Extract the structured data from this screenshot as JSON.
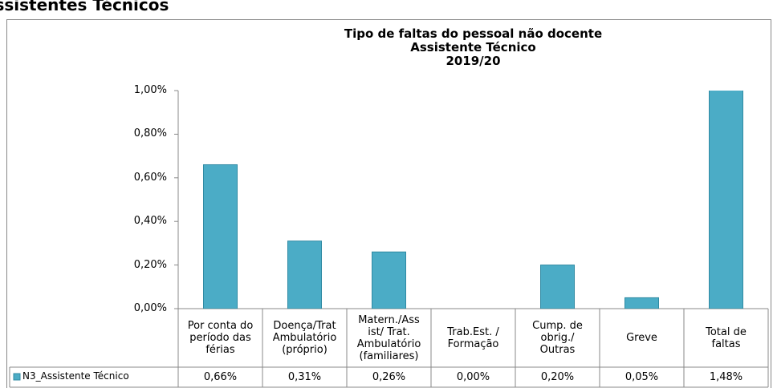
{
  "heading": "Assistentes Técnicos",
  "chart_data": {
    "type": "bar",
    "title": "Tipo de faltas do pessoal não docente\nAssistente Técnico\n2019/20",
    "categories": [
      "Por conta do\nperíodo das\nférias",
      "Doença/Trat\nAmbulatório\n(próprio)",
      "Matern./Ass\nist/ Trat.\nAmbulatório\n(familiares)",
      "Trab.Est. /\nFormação",
      "Cump. de\nobrig./\nOutras",
      "Greve",
      "Total de\nfaltas"
    ],
    "series": [
      {
        "name": "N3_Assistente Técnico",
        "color": "#4bacc6",
        "values": [
          0.66,
          0.31,
          0.26,
          0.0,
          0.2,
          0.05,
          1.48
        ],
        "value_labels": [
          "0,66%",
          "0,31%",
          "0,26%",
          "0,00%",
          "0,20%",
          "0,05%",
          "1,48%"
        ]
      }
    ],
    "ylim": [
      0,
      1
    ],
    "yticks": [
      {
        "value": 0,
        "label": "0,00%"
      },
      {
        "value": 0.2,
        "label": "0,20%"
      },
      {
        "value": 0.4,
        "label": "0,40%"
      },
      {
        "value": 0.6,
        "label": "0,60%"
      },
      {
        "value": 0.8,
        "label": "0,80%"
      },
      {
        "value": 1,
        "label": "1,00%"
      }
    ],
    "grid": false
  }
}
